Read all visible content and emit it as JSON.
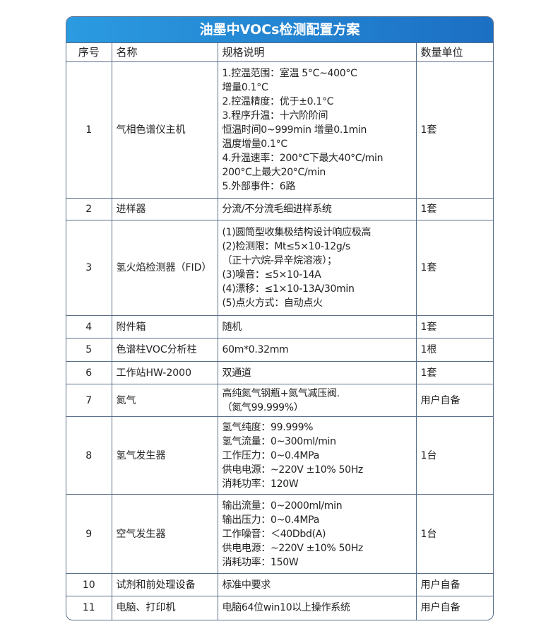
{
  "title": "油墨中VOCs检测配置方案",
  "headers": [
    "序号",
    "名称",
    "规格说明",
    "数量单位"
  ],
  "rows": [
    {
      "no": "1",
      "name": "气相色谱仪主机",
      "spec": [
        "1.控温范围：室温 5°C~400°C",
        "增量0.1°C",
        "2.控温精度：优于±0.1°C",
        "3.程序升温：十六阶阶间",
        "恒温时间0~999min 增量0.1min",
        "温度增量0.1°C",
        "4.升温速率：200°C下最大40°C/min",
        "200°C上最大20°C/min",
        "5.外部事件：6路"
      ],
      "qty": "1套"
    },
    {
      "no": "2",
      "name": "进样器",
      "spec": [
        "分流/不分流毛细进样系统"
      ],
      "qty": "1套"
    },
    {
      "no": "3",
      "name": "氢火焰检测器（FID）",
      "spec": [
        "(1)圆筒型收集极结构设计响应极高",
        "(2)检测限：Mt≤5×10-12g/s",
        "（正十六烷-异辛烷溶液）；",
        " (3)噪音：≤5×10-14A",
        "(4)漂移：≤1×10-13A/30min",
        "(5)点火方式：自动点火"
      ],
      "qty": "1套"
    },
    {
      "no": "4",
      "name": "附件箱",
      "spec": [
        "随机"
      ],
      "qty": "1套"
    },
    {
      "no": "5",
      "name": "色谱柱VOC分析柱",
      "spec": [
        "60m*0.32mm"
      ],
      "qty": "1根"
    },
    {
      "no": "6",
      "name": "工作站HW-2000",
      "spec": [
        "双通道"
      ],
      "qty": "1套"
    },
    {
      "no": "7",
      "name": "氮气",
      "spec": [
        "高纯氮气钢瓶+氮气减压阀.",
        "（氮气99.999%）"
      ],
      "qty": "用户自备"
    },
    {
      "no": "8",
      "name": "氢气发生器",
      "spec": [
        "氢气纯度：99.999%",
        "氢气流量：0~300ml/min",
        "工作压力：0~0.4MPa",
        "供电电源：~220V ±10% 50Hz",
        "消耗功率：120W"
      ],
      "qty": "1台"
    },
    {
      "no": "9",
      "name": "空气发生器",
      "spec": [
        "输出流量：0~2000ml/min",
        "输出压力：0~0.4MPa",
        "工作噪音：＜40Dbd(A)",
        "供电电源：~220V ±10% 50Hz",
        "消耗功率：150W"
      ],
      "qty": "1台"
    },
    {
      "no": "10",
      "name": "试剂和前处理设备",
      "spec": [
        "标准中要求"
      ],
      "qty": "用户自备"
    },
    {
      "no": "11",
      "name": "电脑、打印机",
      "spec": [
        "电脑64位win10以上操作系统"
      ],
      "qty": "用户自备"
    }
  ]
}
